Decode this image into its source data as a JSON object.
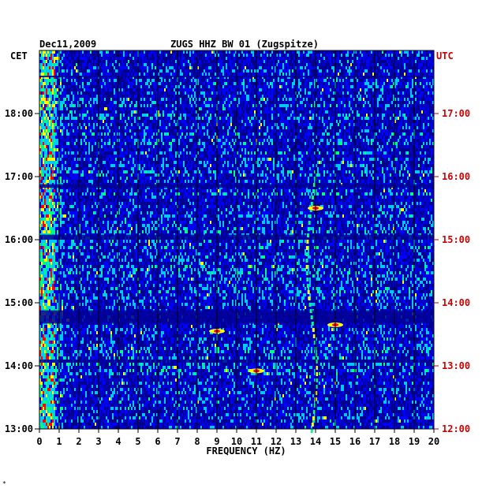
{
  "header": {
    "date": "Dec11,2009",
    "station": "ZUGS HHZ BW 01 (Zugspitze)",
    "left_tz": "CET",
    "right_tz": "UTC"
  },
  "footer": {
    "mark": "*"
  },
  "colors": {
    "background": "#0000c8",
    "grid": "#000000",
    "axis_text": "#000000",
    "utc_text": "#cc0000"
  },
  "chart_data": {
    "type": "heatmap",
    "title": "ZUGS HHZ BW 01 (Zugspitze)",
    "xlabel": "FREQUENCY (HZ)",
    "xlim": [
      0,
      20
    ],
    "x_ticks": [
      0,
      1,
      2,
      3,
      4,
      5,
      6,
      7,
      8,
      9,
      10,
      11,
      12,
      13,
      14,
      15,
      16,
      17,
      18,
      19,
      20
    ],
    "left_axis": {
      "label": "CET",
      "range_hours": [
        13.0,
        18.0
      ],
      "ticks": [
        {
          "hour": 13,
          "label": "13:00"
        },
        {
          "hour": 14,
          "label": "14:00"
        },
        {
          "hour": 15,
          "label": "15:00"
        },
        {
          "hour": 16,
          "label": "16:00"
        },
        {
          "hour": 17,
          "label": "17:00"
        },
        {
          "hour": 18,
          "label": "18:00"
        }
      ]
    },
    "right_axis": {
      "label": "UTC",
      "ticks": [
        {
          "hour": 12,
          "label": "12:00"
        },
        {
          "hour": 13,
          "label": "13:00"
        },
        {
          "hour": 14,
          "label": "14:00"
        },
        {
          "hour": 15,
          "label": "15:00"
        },
        {
          "hour": 16,
          "label": "16:00"
        },
        {
          "hour": 17,
          "label": "17:00"
        }
      ]
    },
    "colormap": [
      "#00008c",
      "#0000ff",
      "#00c8ff",
      "#00ff80",
      "#ffff00",
      "#ff0000"
    ],
    "dark_bands_cet_hours": [
      {
        "start": 16.0,
        "end": 16.08
      },
      {
        "start": 14.67,
        "end": 14.88
      },
      {
        "start": 16.82,
        "end": 16.88
      },
      {
        "start": 14.05,
        "end": 14.1
      },
      {
        "start": 18.58,
        "end": 18.6
      }
    ],
    "features": [
      {
        "type": "low-frequency band",
        "freq_range": [
          0,
          0.8
        ],
        "level": "high"
      },
      {
        "type": "line",
        "freq_start": 13.5,
        "freq_end": 14.0,
        "hour_start": 13.0,
        "hour_end": 17.0
      },
      {
        "type": "hotspot",
        "freq": 15.0,
        "hour": 14.65
      },
      {
        "type": "hotspot",
        "freq": 11.0,
        "hour": 13.92
      },
      {
        "type": "hotspot",
        "freq": 9.0,
        "hour": 14.55
      },
      {
        "type": "hotspot",
        "freq": 14.0,
        "hour": 16.5
      }
    ]
  }
}
